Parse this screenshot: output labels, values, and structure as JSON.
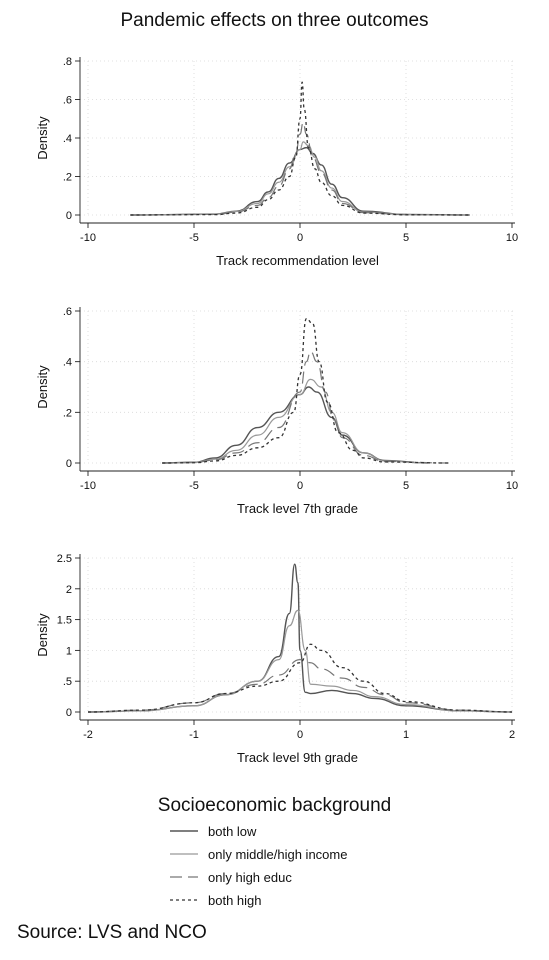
{
  "title": "Pandemic effects on three outcomes",
  "legend": {
    "title": "Socioeconomic background",
    "items": [
      "both low",
      "only middle/high income",
      "only high educ",
      "both high"
    ]
  },
  "source": "Source: LVS and NCO",
  "styles": {
    "both low": {
      "color": "#555555",
      "dash": "none",
      "width": 1.4
    },
    "only middle/high income": {
      "color": "#999999",
      "dash": "none",
      "width": 1.2
    },
    "only high educ": {
      "color": "#777777",
      "dash": "12,6",
      "width": 1.2
    },
    "both high": {
      "color": "#333333",
      "dash": "3,3",
      "width": 1.3
    }
  },
  "chart_data": [
    {
      "type": "line",
      "xlabel": "Track recommendation level",
      "ylabel": "Density",
      "xlim": [
        -10,
        10
      ],
      "ylim": [
        0,
        0.8
      ],
      "xticks": [
        -10,
        -5,
        0,
        5,
        10
      ],
      "yticks": [
        0,
        0.2,
        0.4,
        0.6,
        0.8
      ],
      "yticklabels": [
        "0",
        ".2",
        ".4",
        ".6",
        ".8"
      ],
      "grid": true,
      "series": [
        {
          "name": "both low",
          "x": [
            -8,
            -4,
            -3,
            -2,
            -1.5,
            -1,
            -0.5,
            0,
            0.3,
            0.6,
            1,
            1.5,
            2,
            3,
            5,
            8
          ],
          "y": [
            0,
            0.005,
            0.02,
            0.07,
            0.12,
            0.19,
            0.27,
            0.34,
            0.35,
            0.32,
            0.26,
            0.16,
            0.09,
            0.02,
            0.003,
            0
          ]
        },
        {
          "name": "only middle/high income",
          "x": [
            -8,
            -4,
            -3,
            -2,
            -1.5,
            -1,
            -0.5,
            0,
            0.15,
            0.4,
            0.7,
            1,
            1.5,
            2,
            3,
            5,
            8
          ],
          "y": [
            0,
            0.004,
            0.018,
            0.06,
            0.11,
            0.17,
            0.25,
            0.34,
            0.38,
            0.36,
            0.3,
            0.23,
            0.14,
            0.07,
            0.015,
            0.002,
            0
          ]
        },
        {
          "name": "only high educ",
          "x": [
            -8,
            -4,
            -3,
            -2,
            -1.5,
            -1,
            -0.5,
            -0.2,
            0,
            0.15,
            0.3,
            0.6,
            1,
            1.5,
            2,
            3,
            5,
            8
          ],
          "y": [
            0,
            0.003,
            0.015,
            0.05,
            0.09,
            0.15,
            0.24,
            0.32,
            0.42,
            0.48,
            0.42,
            0.3,
            0.22,
            0.13,
            0.06,
            0.012,
            0.002,
            0
          ]
        },
        {
          "name": "both high",
          "x": [
            -8,
            -4,
            -3,
            -2,
            -1.5,
            -1,
            -0.5,
            -0.2,
            0,
            0.1,
            0.2,
            0.4,
            0.7,
            1,
            1.5,
            2,
            3,
            5,
            8
          ],
          "y": [
            0,
            0.002,
            0.01,
            0.04,
            0.08,
            0.13,
            0.2,
            0.3,
            0.5,
            0.69,
            0.55,
            0.35,
            0.24,
            0.17,
            0.1,
            0.05,
            0.01,
            0.001,
            0
          ]
        }
      ]
    },
    {
      "type": "line",
      "xlabel": "Track level 7th grade",
      "ylabel": "Density",
      "xlim": [
        -10,
        10
      ],
      "ylim": [
        0,
        0.6
      ],
      "xticks": [
        -10,
        -5,
        0,
        5,
        10
      ],
      "yticks": [
        0,
        0.2,
        0.4,
        0.6
      ],
      "yticklabels": [
        "0",
        ".2",
        ".4",
        ".6"
      ],
      "grid": true,
      "series": [
        {
          "name": "both low",
          "x": [
            -6.5,
            -5,
            -4,
            -3,
            -2,
            -1,
            0,
            0.4,
            0.8,
            1.5,
            2,
            3,
            4,
            6
          ],
          "y": [
            0,
            0.003,
            0.02,
            0.07,
            0.14,
            0.2,
            0.27,
            0.3,
            0.28,
            0.18,
            0.11,
            0.04,
            0.01,
            0
          ]
        },
        {
          "name": "only middle/high income",
          "x": [
            -6.5,
            -5,
            -4,
            -3,
            -2,
            -1,
            0,
            0.5,
            1,
            1.5,
            2,
            3,
            4,
            6
          ],
          "y": [
            0,
            0.002,
            0.015,
            0.05,
            0.11,
            0.18,
            0.27,
            0.33,
            0.3,
            0.2,
            0.12,
            0.04,
            0.008,
            0
          ]
        },
        {
          "name": "only high educ",
          "x": [
            -6.5,
            -5,
            -4,
            -3,
            -2,
            -1,
            0,
            0.3,
            0.5,
            0.8,
            1.2,
            1.6,
            2,
            3,
            4,
            7
          ],
          "y": [
            0,
            0.002,
            0.012,
            0.04,
            0.08,
            0.14,
            0.28,
            0.4,
            0.44,
            0.4,
            0.28,
            0.17,
            0.1,
            0.03,
            0.006,
            0
          ]
        },
        {
          "name": "both high",
          "x": [
            -6.5,
            -5,
            -4,
            -3,
            -2,
            -1,
            -0.3,
            0,
            0.3,
            0.6,
            0.9,
            1.3,
            1.8,
            2.5,
            3,
            4,
            7
          ],
          "y": [
            0,
            0.001,
            0.008,
            0.03,
            0.06,
            0.1,
            0.2,
            0.35,
            0.57,
            0.55,
            0.4,
            0.24,
            0.12,
            0.05,
            0.02,
            0.004,
            0
          ]
        }
      ]
    },
    {
      "type": "line",
      "xlabel": "Track level 9th grade",
      "ylabel": "Density",
      "xlim": [
        -2,
        2
      ],
      "ylim": [
        0,
        2.5
      ],
      "xticks": [
        -2,
        -1,
        0,
        1,
        2
      ],
      "yticks": [
        0,
        0.5,
        1,
        1.5,
        2,
        2.5
      ],
      "yticklabels": [
        "0",
        ".5",
        "1",
        "1.5",
        "2",
        "2.5"
      ],
      "grid": true,
      "series": [
        {
          "name": "both low",
          "x": [
            -2,
            -1.5,
            -1,
            -0.7,
            -0.4,
            -0.2,
            -0.1,
            -0.05,
            -0.02,
            0,
            0.05,
            0.1,
            0.3,
            0.5,
            0.7,
            1,
            1.5,
            2
          ],
          "y": [
            0,
            0.02,
            0.1,
            0.28,
            0.5,
            0.9,
            1.6,
            2.4,
            2.1,
            1.0,
            0.32,
            0.3,
            0.35,
            0.3,
            0.22,
            0.1,
            0.02,
            0
          ]
        },
        {
          "name": "only middle/high income",
          "x": [
            -2,
            -1.5,
            -1,
            -0.7,
            -0.4,
            -0.2,
            -0.1,
            -0.02,
            0.05,
            0.1,
            0.3,
            0.5,
            0.7,
            1,
            1.5,
            2
          ],
          "y": [
            0,
            0.02,
            0.1,
            0.28,
            0.5,
            0.85,
            1.4,
            1.65,
            1.0,
            0.45,
            0.42,
            0.35,
            0.25,
            0.12,
            0.02,
            0
          ]
        },
        {
          "name": "only high educ",
          "x": [
            -2,
            -1.5,
            -1,
            -0.7,
            -0.4,
            -0.2,
            0,
            0.1,
            0.2,
            0.4,
            0.6,
            0.8,
            1,
            1.5,
            2
          ],
          "y": [
            0,
            0.03,
            0.15,
            0.3,
            0.45,
            0.6,
            0.85,
            0.8,
            0.7,
            0.55,
            0.4,
            0.28,
            0.15,
            0.03,
            0
          ]
        },
        {
          "name": "both high",
          "x": [
            -2,
            -1.5,
            -1,
            -0.7,
            -0.4,
            -0.2,
            0,
            0.1,
            0.2,
            0.4,
            0.6,
            0.8,
            1,
            1.5,
            2
          ],
          "y": [
            0,
            0.03,
            0.15,
            0.3,
            0.42,
            0.5,
            0.8,
            1.1,
            1.0,
            0.72,
            0.5,
            0.3,
            0.17,
            0.03,
            0
          ]
        }
      ]
    }
  ]
}
